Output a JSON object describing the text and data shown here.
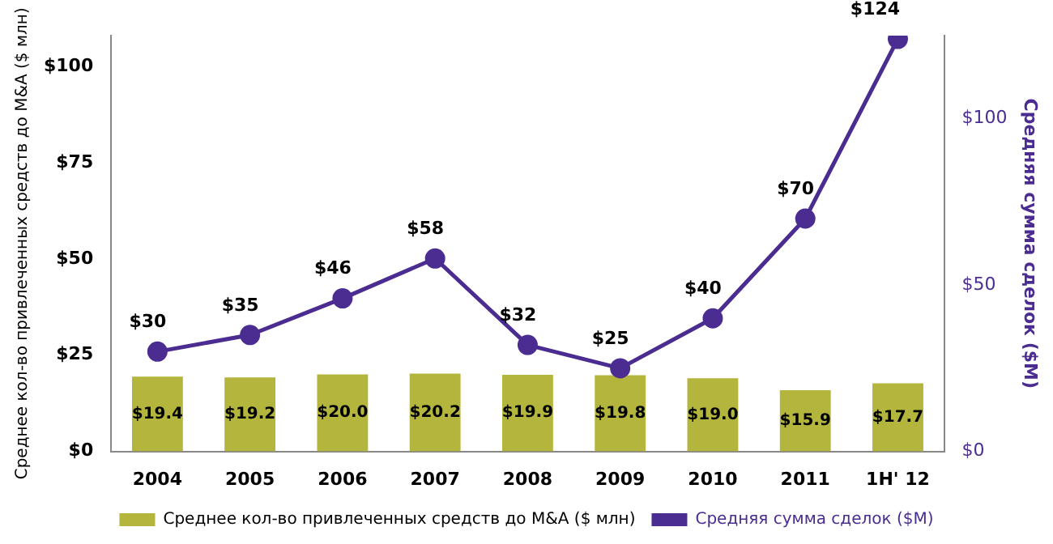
{
  "chart_data": {
    "type": "bar",
    "ylabel": "Среднее кол-во привлеченных средств до M&A ($ млн)",
    "y2label": "Средняя сумма сделок ($M)",
    "categories": [
      "2004",
      "2005",
      "2006",
      "2007",
      "2008",
      "2009",
      "2010",
      "2011",
      "1H' 12"
    ],
    "series": [
      {
        "name": "Среднее кол-во привлеченных средств до M&A ($ млн)",
        "color": "#b3b53c",
        "values": [
          19.4,
          19.2,
          20.0,
          20.2,
          19.9,
          19.8,
          19.0,
          15.9,
          17.7
        ],
        "value_labels": [
          "$19.4",
          "$19.2",
          "$20.0",
          "$20.2",
          "$19.9",
          "$19.8",
          "$19.0",
          "$15.9",
          "$17.7"
        ]
      },
      {
        "name": "Средняя сумма сделок ($M)",
        "type": "line",
        "axis": "y2",
        "color": "#4b2c91",
        "marker": "circle",
        "values": [
          30,
          35,
          46,
          58,
          32,
          25,
          40,
          70,
          124
        ],
        "value_labels": [
          "$30",
          "$35",
          "$46",
          "$58",
          "$32",
          "$25",
          "$40",
          "$70",
          "$124"
        ]
      }
    ],
    "ylim": [
      0,
      108
    ],
    "yticks": [
      {
        "value": 0,
        "label": "$0"
      },
      {
        "value": 25,
        "label": "$25"
      },
      {
        "value": 50,
        "label": "$50"
      },
      {
        "value": 75,
        "label": "$75"
      },
      {
        "value": 100,
        "label": "$100"
      }
    ],
    "y2lim": [
      0,
      125
    ],
    "y2ticks": [
      {
        "value": 0,
        "label": "$0"
      },
      {
        "value": 50,
        "label": "$50"
      },
      {
        "value": 100,
        "label": "$100"
      }
    ],
    "legend": "bottom",
    "grid": false
  }
}
